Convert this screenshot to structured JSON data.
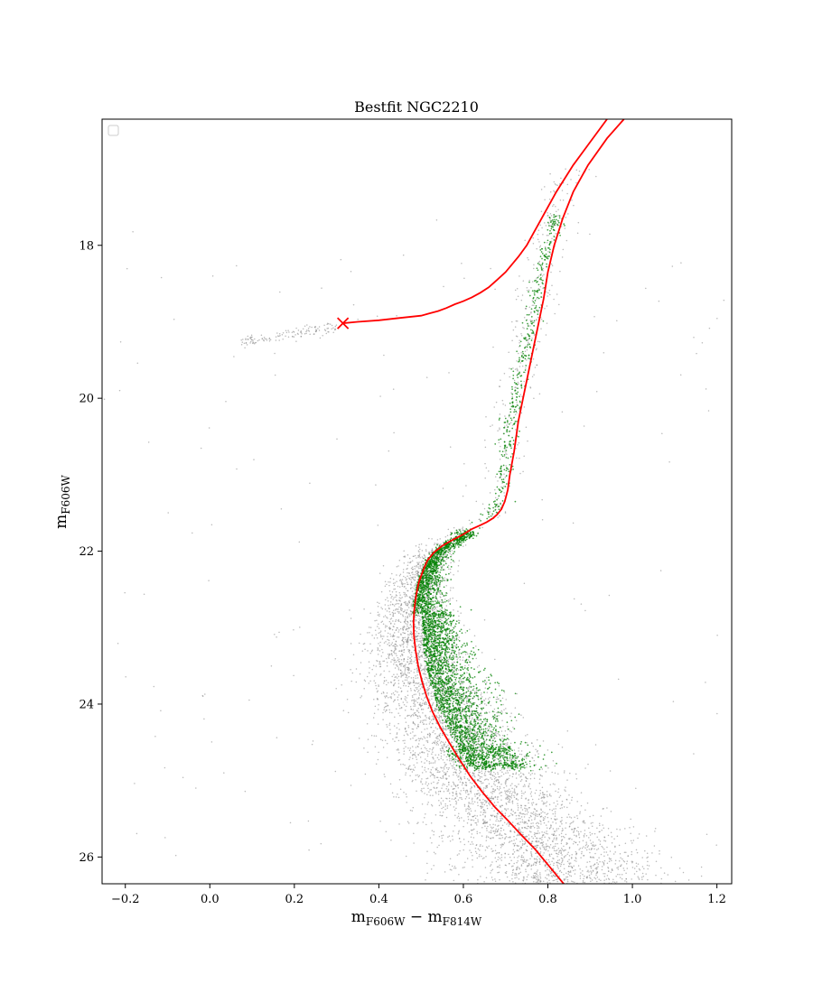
{
  "chart_data": {
    "type": "scatter",
    "title": "Bestfit NGC2210",
    "xlabel": {
      "main": "m",
      "sub1": "F606W",
      "sep": " − m",
      "sub2": "F814W"
    },
    "ylabel": {
      "main": "m",
      "sub": "F606W"
    },
    "xlim": [
      -0.255,
      1.235
    ],
    "ylim": [
      26.35,
      16.35
    ],
    "y_inverted": true,
    "grid": false,
    "legend": {
      "placement": "top-left",
      "entries": []
    },
    "xticks": [
      -0.2,
      0.0,
      0.2,
      0.4,
      0.6,
      0.8,
      1.0,
      1.2
    ],
    "xtick_labels": [
      "−0.2",
      "0.0",
      "0.2",
      "0.4",
      "0.6",
      "0.8",
      "1.0",
      "1.2"
    ],
    "yticks": [
      18,
      20,
      22,
      24,
      26
    ],
    "ytick_labels": [
      "18",
      "20",
      "22",
      "24",
      "26"
    ],
    "colors": {
      "observed": "#808080",
      "selected": "#008000",
      "isochrone": "#ff0000"
    },
    "series": [
      {
        "kind": "isochrone-line",
        "x": [
          0.98,
          0.94,
          0.895,
          0.86,
          0.835,
          0.815,
          0.8,
          0.79,
          0.775,
          0.76,
          0.745,
          0.73,
          0.72,
          0.71,
          0.705,
          0.698,
          0.69,
          0.68,
          0.67,
          0.655,
          0.64,
          0.62,
          0.6,
          0.575,
          0.55,
          0.53,
          0.515,
          0.505,
          0.495,
          0.488,
          0.484,
          0.482,
          0.483,
          0.487,
          0.493,
          0.502,
          0.513,
          0.527,
          0.545,
          0.566,
          0.59,
          0.617,
          0.645,
          0.675,
          0.705,
          0.735,
          0.77,
          0.8,
          0.83,
          0.86,
          0.89,
          0.915,
          0.935,
          0.945
        ],
        "y": [
          16.35,
          16.6,
          16.95,
          17.3,
          17.65,
          18.0,
          18.35,
          18.7,
          19.1,
          19.5,
          19.9,
          20.3,
          20.7,
          21.0,
          21.2,
          21.35,
          21.45,
          21.52,
          21.57,
          21.62,
          21.66,
          21.71,
          21.78,
          21.85,
          21.93,
          22.02,
          22.12,
          22.25,
          22.4,
          22.58,
          22.75,
          22.92,
          23.1,
          23.3,
          23.5,
          23.7,
          23.9,
          24.1,
          24.3,
          24.5,
          24.72,
          24.95,
          25.15,
          25.35,
          25.52,
          25.7,
          25.9,
          26.1,
          26.3,
          26.5,
          26.7,
          26.9,
          27.1,
          27.3
        ]
      },
      {
        "kind": "isochrone-line",
        "x": [
          0.94,
          0.9,
          0.86,
          0.82,
          0.79,
          0.765,
          0.75,
          0.73,
          0.7,
          0.68,
          0.66,
          0.64,
          0.62,
          0.6,
          0.58,
          0.56,
          0.54,
          0.52,
          0.5,
          0.45,
          0.4,
          0.35,
          0.315
        ],
        "y": [
          16.35,
          16.65,
          16.95,
          17.3,
          17.6,
          17.85,
          18.0,
          18.15,
          18.35,
          18.45,
          18.55,
          18.62,
          18.68,
          18.73,
          18.77,
          18.82,
          18.86,
          18.89,
          18.92,
          18.95,
          18.98,
          19.0,
          19.02
        ]
      },
      {
        "kind": "marker",
        "symbol": "x",
        "x": [
          0.315
        ],
        "y": [
          19.02
        ]
      }
    ]
  }
}
